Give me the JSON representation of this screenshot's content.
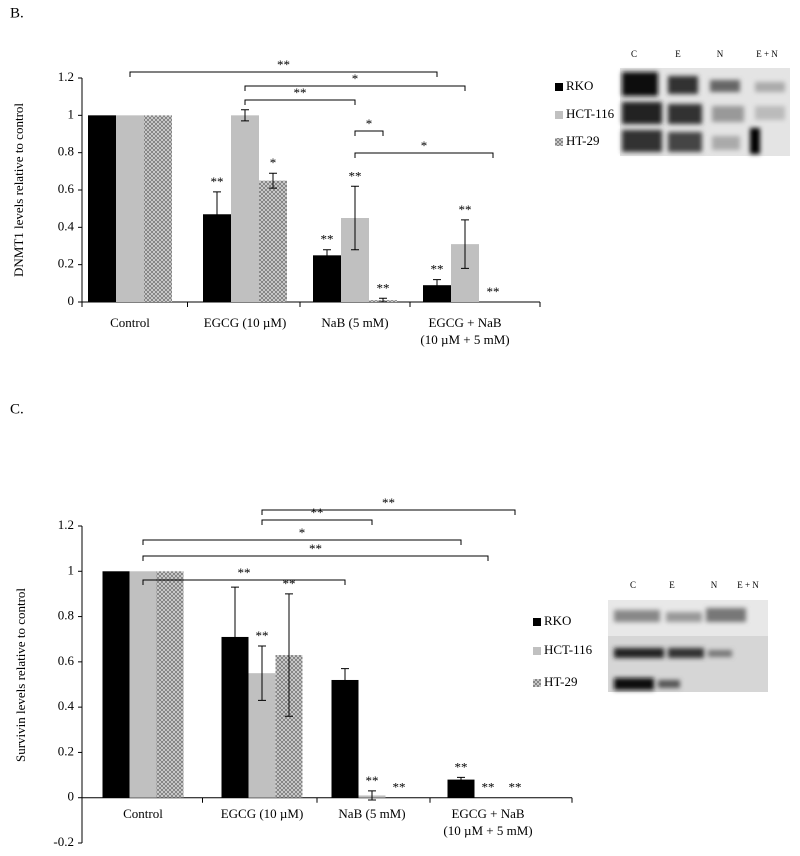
{
  "chart_data": [
    {
      "type": "bar",
      "panel": "B.",
      "y_label": "DNMT1 levels relative to control",
      "categories": [
        "Control",
        "EGCG (10 µM)",
        "NaB (5 mM)",
        "EGCG + NaB\n(10 µM + 5 mM)"
      ],
      "series": [
        {
          "name": "RKO",
          "color": "#000000",
          "values": [
            1,
            0.47,
            0.25,
            0.09
          ],
          "errors": [
            null,
            0.12,
            0.03,
            0.03
          ],
          "stars": [
            null,
            "**",
            "**",
            "**"
          ]
        },
        {
          "name": "HCT-116",
          "color": "#c0c0c0",
          "values": [
            1,
            1.0,
            0.45,
            0.31
          ],
          "errors": [
            null,
            0.03,
            0.17,
            0.13
          ],
          "stars": [
            null,
            null,
            "**",
            "**"
          ]
        },
        {
          "name": "HT-29",
          "color": "#b0b0b0",
          "hatch": true,
          "values": [
            1,
            0.65,
            0.01,
            0
          ],
          "errors": [
            null,
            0.04,
            0.01,
            null
          ],
          "stars": [
            null,
            "*",
            "**",
            "**"
          ]
        }
      ],
      "brackets": [
        "**",
        "*",
        "**",
        "*",
        "*"
      ],
      "lanes": [
        "C",
        "E",
        "N",
        "E + N"
      ],
      "ylim": [
        0,
        1.2
      ],
      "yticks": [
        0,
        0.2,
        0.4,
        0.6,
        0.8,
        1,
        1.2
      ]
    },
    {
      "type": "bar",
      "panel": "C.",
      "y_label": "Survivin levels relative to control",
      "categories": [
        "Control",
        "EGCG (10 µM)",
        "NaB (5 mM)",
        "EGCG + NaB\n(10 µM + 5 mM)"
      ],
      "series": [
        {
          "name": "RKO",
          "color": "#000000",
          "values": [
            1,
            0.71,
            0.52,
            0.08
          ],
          "errors": [
            null,
            0.22,
            0.05,
            0.01
          ],
          "stars": [
            null,
            null,
            null,
            "**"
          ]
        },
        {
          "name": "HCT-116",
          "color": "#c0c0c0",
          "values": [
            1,
            0.55,
            0.01,
            0
          ],
          "errors": [
            null,
            0.12,
            0.02,
            null
          ],
          "stars": [
            null,
            "**",
            "**",
            "**"
          ]
        },
        {
          "name": "HT-29",
          "color": "#b0b0b0",
          "hatch": true,
          "values": [
            1,
            0.63,
            0,
            0
          ],
          "errors": [
            null,
            0.27,
            null,
            null
          ],
          "stars": [
            null,
            "**",
            "**",
            "**"
          ]
        }
      ],
      "brackets": [
        "**",
        "**",
        "*",
        "**",
        "**"
      ],
      "lanes": [
        "C",
        "E",
        "N",
        "E + N"
      ],
      "ylim": [
        -0.2,
        1.2
      ],
      "yticks": [
        -0.2,
        0,
        0.2,
        0.4,
        0.6,
        0.8,
        1,
        1.2
      ]
    }
  ]
}
